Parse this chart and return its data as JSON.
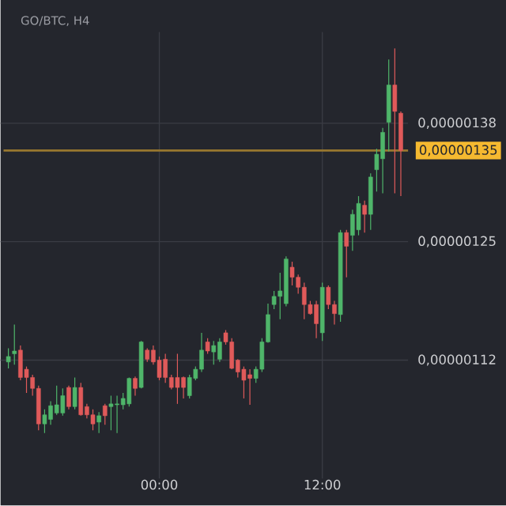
{
  "chart_data": {
    "type": "candlestick",
    "title": "GO/BTC, H4",
    "categories": [
      null,
      null,
      null,
      null,
      null,
      null,
      null,
      null,
      null,
      null,
      null,
      null,
      null,
      null,
      null,
      null,
      null,
      null,
      null,
      null,
      null,
      null,
      null,
      null,
      null,
      "00:00",
      null,
      null,
      null,
      null,
      null,
      null,
      null,
      null,
      null,
      null,
      null,
      null,
      null,
      null,
      null,
      null,
      null,
      null,
      null,
      null,
      null,
      null,
      null,
      null,
      null,
      null,
      "12:00",
      null,
      null,
      null,
      null,
      null,
      null,
      null,
      null,
      null,
      null,
      null,
      null,
      null
    ],
    "ohlc": [
      [
        1.118e-06,
        1.133e-06,
        1.111e-06,
        1.124e-06
      ],
      [
        1.127e-06,
        1.159e-06,
        1.115e-06,
        1.13e-06
      ],
      [
        1.131e-06,
        1.136e-06,
        1.098e-06,
        1.101e-06
      ],
      [
        1.11e-06,
        1.113e-06,
        1.084e-06,
        1.101e-06
      ],
      [
        1.101e-06,
        1.104e-06,
        1.081e-06,
        1.089e-06
      ],
      [
        1.089e-06,
        1.092e-06,
        1.043e-06,
        1.05e-06
      ],
      [
        1.05e-06,
        1.066e-06,
        1.04e-06,
        1.06e-06
      ],
      [
        1.055e-06,
        1.075e-06,
        1.049e-06,
        1.07e-06
      ],
      [
        1.062e-06,
        1.092e-06,
        1.06e-06,
        1.071e-06
      ],
      [
        1.062e-06,
        1.089e-06,
        1.059e-06,
        1.081e-06
      ],
      [
        1.09e-06,
        1.092e-06,
        1.066e-06,
        1.069e-06
      ],
      [
        1.069e-06,
        1.101e-06,
        1.066e-06,
        1.09e-06
      ],
      [
        1.09e-06,
        1.095e-06,
        1.059e-06,
        1.06e-06
      ],
      [
        1.069e-06,
        1.072e-06,
        1.056e-06,
        1.06e-06
      ],
      [
        1.06e-06,
        1.066e-06,
        1.043e-06,
        1.05e-06
      ],
      [
        1.052e-06,
        1.063e-06,
        1.04e-06,
        1.059e-06
      ],
      [
        1.07e-06,
        1.072e-06,
        1.049e-06,
        1.059e-06
      ],
      [
        1.069e-06,
        1.081e-06,
        1.043e-06,
        1.072e-06
      ],
      [
        1.071e-06,
        1.081e-06,
        1.04e-06,
        1.072e-06
      ],
      [
        1.071e-06,
        1.084e-06,
        1.066e-06,
        1.078e-06
      ],
      [
        1.072e-06,
        1.101e-06,
        1.069e-06,
        1.1e-06
      ],
      [
        1.1e-06,
        1.102e-06,
        1.081e-06,
        1.089e-06
      ],
      [
        1.09e-06,
        1.141e-06,
        1.089e-06,
        1.14e-06
      ],
      [
        1.131e-06,
        1.133e-06,
        1.118e-06,
        1.121e-06
      ],
      [
        1.131e-06,
        1.136e-06,
        1.115e-06,
        1.118e-06
      ],
      [
        1.12e-06,
        1.124e-06,
        1.098e-06,
        1.101e-06
      ],
      [
        1.121e-06,
        1.127e-06,
        1.095e-06,
        1.101e-06
      ],
      [
        1.101e-06,
        1.104e-06,
        1.088e-06,
        1.09e-06
      ],
      [
        1.101e-06,
        1.127e-06,
        1.072e-06,
        1.09e-06
      ],
      [
        1.101e-06,
        1.102e-06,
        1.078e-06,
        1.09e-06
      ],
      [
        1.081e-06,
        1.104e-06,
        1.078e-06,
        1.101e-06
      ],
      [
        1.1e-06,
        1.113e-06,
        1.098e-06,
        1.11e-06
      ],
      [
        1.11e-06,
        1.15e-06,
        1.107e-06,
        1.131e-06
      ],
      [
        1.14e-06,
        1.144e-06,
        1.127e-06,
        1.13e-06
      ],
      [
        1.129e-06,
        1.141e-06,
        1.115e-06,
        1.136e-06
      ],
      [
        1.121e-06,
        1.144e-06,
        1.118e-06,
        1.14e-06
      ],
      [
        1.15e-06,
        1.153e-06,
        1.137e-06,
        1.14e-06
      ],
      [
        1.14e-06,
        1.144e-06,
        1.11e-06,
        1.111e-06
      ],
      [
        1.12e-06,
        1.121e-06,
        1.101e-06,
        1.107e-06
      ],
      [
        1.11e-06,
        1.113e-06,
        1.078e-06,
        1.098e-06
      ],
      [
        1.104e-06,
        1.11e-06,
        1.071e-06,
        1.1e-06
      ],
      [
        1.1e-06,
        1.113e-06,
        1.095e-06,
        1.11e-06
      ],
      [
        1.11e-06,
        1.144e-06,
        1.107e-06,
        1.14e-06
      ],
      [
        1.14e-06,
        1.182e-06,
        1.139e-06,
        1.17e-06
      ],
      [
        1.181e-06,
        1.196e-06,
        1.176e-06,
        1.19e-06
      ],
      [
        1.19e-06,
        1.216e-06,
        1.165e-06,
        1.196e-06
      ],
      [
        1.182e-06,
        1.234e-06,
        1.179e-06,
        1.231e-06
      ],
      [
        1.222e-06,
        1.228e-06,
        1.202e-06,
        1.211e-06
      ],
      [
        1.211e-06,
        1.214e-06,
        1.193e-06,
        1.2e-06
      ],
      [
        1.2e-06,
        1.205e-06,
        1.165e-06,
        1.181e-06
      ],
      [
        1.181e-06,
        1.185e-06,
        1.17e-06,
        1.171e-06
      ],
      [
        1.181e-06,
        1.185e-06,
        1.144e-06,
        1.16e-06
      ],
      [
        1.15e-06,
        1.205e-06,
        1.141e-06,
        1.2e-06
      ],
      [
        1.2e-06,
        1.202e-06,
        1.176e-06,
        1.181e-06
      ],
      [
        1.181e-06,
        1.185e-06,
        1.159e-06,
        1.171e-06
      ],
      [
        1.17e-06,
        1.263e-06,
        1.162e-06,
        1.26e-06
      ],
      [
        1.26e-06,
        1.263e-06,
        1.211e-06,
        1.245e-06
      ],
      [
        1.257e-06,
        1.285e-06,
        1.24e-06,
        1.28e-06
      ],
      [
        1.263e-06,
        1.3e-06,
        1.257e-06,
        1.292e-06
      ],
      [
        1.29e-06,
        1.295e-06,
        1.26e-06,
        1.28e-06
      ],
      [
        1.28e-06,
        1.325e-06,
        1.263e-06,
        1.321e-06
      ],
      [
        1.329e-06,
        1.352e-06,
        1.305e-06,
        1.346e-06
      ],
      [
        1.341e-06,
        1.375e-06,
        1.303e-06,
        1.37e-06
      ],
      [
        1.381e-06,
        1.45e-06,
        1.349e-06,
        1.422e-06
      ],
      [
        1.422e-06,
        1.462e-06,
        1.303e-06,
        1.393e-06
      ],
      [
        1.391e-06,
        1.393e-06,
        1.3e-06,
        1.35e-06
      ]
    ],
    "colors": [
      "#4fb56a",
      "#4fb56a",
      "#e05a5a",
      "#e05a5a",
      "#e05a5a",
      "#e05a5a",
      "#4fb56a",
      "#4fb56a",
      "#4fb56a",
      "#4fb56a",
      "#e05a5a",
      "#4fb56a",
      "#e05a5a",
      "#e05a5a",
      "#e05a5a",
      "#4fb56a",
      "#e05a5a",
      "#4fb56a",
      "#4fb56a",
      "#4fb56a",
      "#4fb56a",
      "#e05a5a",
      "#4fb56a",
      "#e05a5a",
      "#e05a5a",
      "#e05a5a",
      "#e05a5a",
      "#e05a5a",
      "#e05a5a",
      "#e05a5a",
      "#4fb56a",
      "#4fb56a",
      "#4fb56a",
      "#e05a5a",
      "#4fb56a",
      "#4fb56a",
      "#e05a5a",
      "#e05a5a",
      "#e05a5a",
      "#e05a5a",
      "#e05a5a",
      "#4fb56a",
      "#4fb56a",
      "#4fb56a",
      "#4fb56a",
      "#4fb56a",
      "#4fb56a",
      "#e05a5a",
      "#e05a5a",
      "#e05a5a",
      "#e05a5a",
      "#e05a5a",
      "#4fb56a",
      "#e05a5a",
      "#e05a5a",
      "#4fb56a",
      "#e05a5a",
      "#4fb56a",
      "#4fb56a",
      "#e05a5a",
      "#4fb56a",
      "#4fb56a",
      "#4fb56a",
      "#4fb56a",
      "#e05a5a",
      "#e05a5a"
    ],
    "ylim": [
      9.9e-07,
      1.48e-06
    ],
    "yticks": [
      {
        "value": 1.12e-06,
        "label": "0,00000112"
      },
      {
        "value": 1.25e-06,
        "label": "0,00000125"
      },
      {
        "value": 1.38e-06,
        "label": "0,00000138"
      }
    ],
    "ref_lines": [
      {
        "axis": "y",
        "value": 1.35e-06,
        "label": "0,00000135",
        "color": "#97772f"
      }
    ],
    "grid": true
  }
}
